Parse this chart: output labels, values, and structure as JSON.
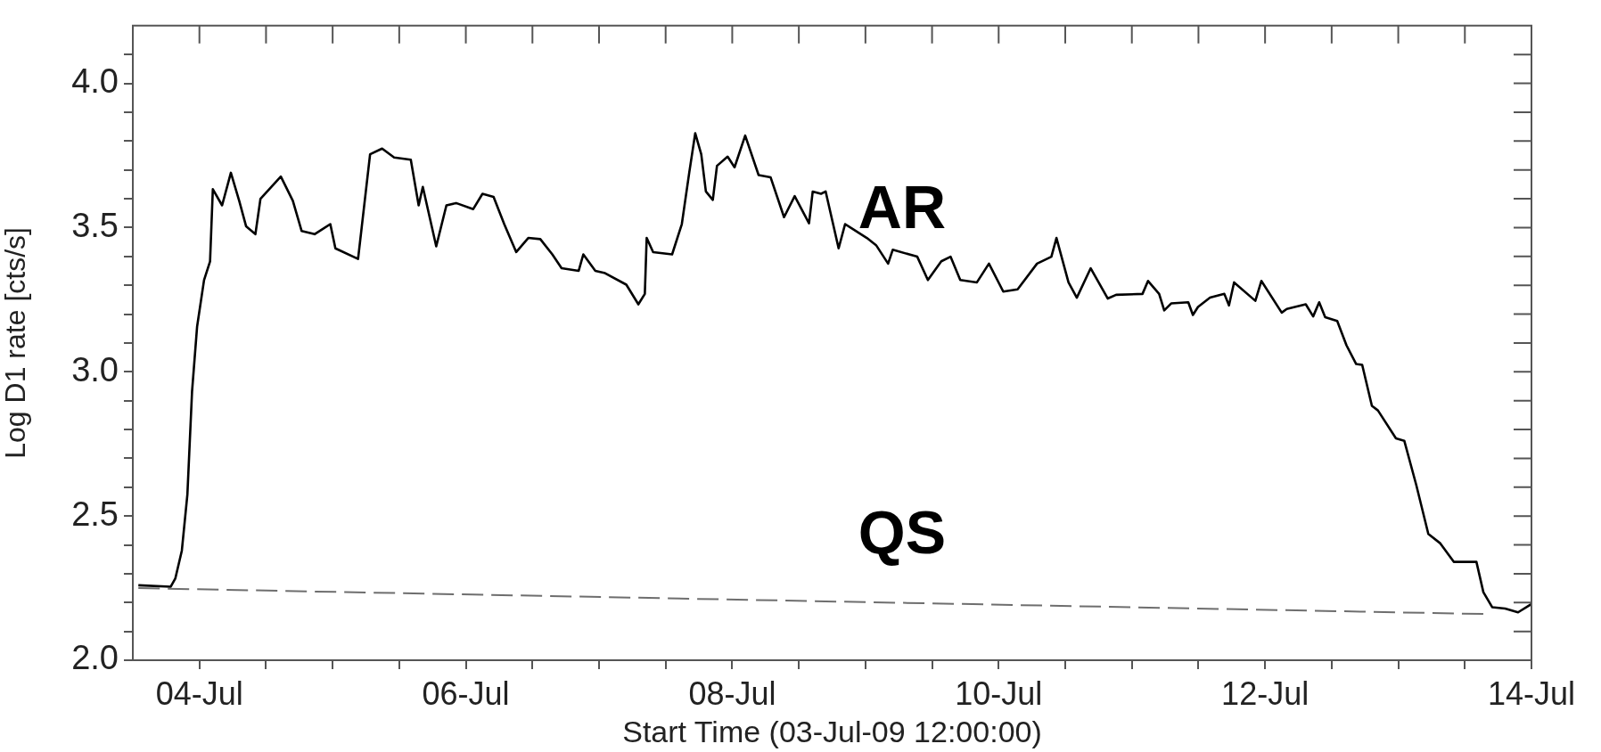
{
  "chart_data": {
    "type": "line",
    "xlabel": "Start Time (03-Jul-09 12:00:00)",
    "ylabel": "Log D1 rate [cts/s]",
    "xlim": [
      "--07-03T12:00",
      "--07-14T00:00"
    ],
    "xticks": [
      {
        "value": "--07-04T00:00",
        "label": "04-Jul"
      },
      {
        "value": "--07-04T12:00",
        "label": null
      },
      {
        "value": "--07-05T00:00",
        "label": null
      },
      {
        "value": "--07-05T12:00",
        "label": null
      },
      {
        "value": "--07-06T00:00",
        "label": "06-Jul"
      },
      {
        "value": "--07-06T12:00",
        "label": null
      },
      {
        "value": "--07-07T00:00",
        "label": null
      },
      {
        "value": "--07-07T12:00",
        "label": null
      },
      {
        "value": "--07-08T00:00",
        "label": "08-Jul"
      },
      {
        "value": "--07-08T12:00",
        "label": null
      },
      {
        "value": "--07-09T00:00",
        "label": null
      },
      {
        "value": "--07-09T12:00",
        "label": null
      },
      {
        "value": "--07-10T00:00",
        "label": "10-Jul"
      },
      {
        "value": "--07-10T12:00",
        "label": null
      },
      {
        "value": "--07-11T00:00",
        "label": null
      },
      {
        "value": "--07-11T12:00",
        "label": null
      },
      {
        "value": "--07-12T00:00",
        "label": "12-Jul"
      },
      {
        "value": "--07-12T12:00",
        "label": null
      },
      {
        "value": "--07-13T00:00",
        "label": null
      },
      {
        "value": "--07-13T12:00",
        "label": null
      },
      {
        "value": "--07-14T00:00",
        "label": "14-Jul"
      }
    ],
    "ylim": [
      2.0,
      4.2
    ],
    "yticks": [
      {
        "value": 2.0,
        "label": "2.0"
      },
      {
        "value": 2.1,
        "label": null
      },
      {
        "value": 2.2,
        "label": null
      },
      {
        "value": 2.3,
        "label": null
      },
      {
        "value": 2.4,
        "label": null
      },
      {
        "value": 2.5,
        "label": "2.5"
      },
      {
        "value": 2.6,
        "label": null
      },
      {
        "value": 2.7,
        "label": null
      },
      {
        "value": 2.8,
        "label": null
      },
      {
        "value": 2.9,
        "label": null
      },
      {
        "value": 3.0,
        "label": "3.0"
      },
      {
        "value": 3.1,
        "label": null
      },
      {
        "value": 3.2,
        "label": null
      },
      {
        "value": 3.3,
        "label": null
      },
      {
        "value": 3.4,
        "label": null
      },
      {
        "value": 3.5,
        "label": "3.5"
      },
      {
        "value": 3.6,
        "label": null
      },
      {
        "value": 3.7,
        "label": null
      },
      {
        "value": 3.8,
        "label": null
      },
      {
        "value": 3.9,
        "label": null
      },
      {
        "value": 4.0,
        "label": "4.0"
      },
      {
        "value": 4.1,
        "label": null
      }
    ],
    "grid": false,
    "legend": false,
    "marker": "none",
    "series": [
      {
        "name": "AR",
        "color": "#000000",
        "line_style": "solid",
        "x": [
          "--07-03T13:00",
          "--07-03T18:50",
          "--07-03T19:40",
          "--07-03T20:50",
          "--07-03T21:50",
          "--07-03T22:40",
          "--07-03T23:35",
          "--07-04T00:50",
          "--07-04T01:55",
          "--07-04T02:25",
          "--07-04T04:05",
          "--07-04T05:40",
          "--07-04T07:10",
          "--07-04T08:25",
          "--07-04T10:05",
          "--07-04T11:00",
          "--07-04T14:40",
          "--07-04T16:50",
          "--07-04T18:25",
          "--07-04T20:45",
          "--07-04T23:35",
          "--07-05T00:30",
          "--07-05T04:35",
          "--07-05T06:45",
          "--07-05T08:55",
          "--07-05T11:05",
          "--07-05T14:05",
          "--07-05T15:30",
          "--07-05T16:15",
          "--07-05T18:40",
          "--07-05T20:30",
          "--07-05T22:15",
          "--07-06T01:20",
          "--07-06T03:00",
          "--07-06T05:00",
          "--07-06T06:55",
          "--07-06T09:05",
          "--07-06T11:15",
          "--07-06T13:25",
          "--07-06T15:35",
          "--07-06T17:15",
          "--07-06T20:20",
          "--07-06T21:10",
          "--07-06T23:20",
          "--07-07T01:05",
          "--07-07T04:55",
          "--07-07T07:05",
          "--07-07T08:15",
          "--07-07T08:35",
          "--07-07T09:45",
          "--07-07T13:10",
          "--07-07T14:55",
          "--07-07T16:15",
          "--07-07T17:20",
          "--07-07T18:25",
          "--07-07T19:15",
          "--07-07T20:30",
          "--07-07T21:15",
          "--07-07T23:10",
          "--07-08T00:25",
          "--07-08T02:20",
          "--07-08T04:45",
          "--07-08T06:55",
          "--07-08T09:20",
          "--07-08T11:15",
          "--07-08T13:50",
          "--07-08T14:30",
          "--07-08T16:00",
          "--07-08T16:50",
          "--07-08T19:10",
          "--07-08T20:20",
          "--07-09T00:15",
          "--07-09T01:55",
          "--07-09T04:05",
          "--07-09T04:55",
          "--07-09T09:20",
          "--07-09T11:15",
          "--07-09T13:40",
          "--07-09T15:20",
          "--07-09T17:05",
          "--07-09T20:05",
          "--07-09T22:15",
          "--07-10T00:50",
          "--07-10T03:25",
          "--07-10T06:55",
          "--07-10T09:30",
          "--07-10T10:25",
          "--07-10T12:35",
          "--07-10T14:05",
          "--07-10T16:35",
          "--07-10T19:40",
          "--07-10T21:10",
          "--07-11T01:55",
          "--07-11T02:55",
          "--07-11T04:55",
          "--07-11T05:50",
          "--07-11T07:05",
          "--07-11T10:10",
          "--07-11T11:00",
          "--07-11T11:55",
          "--07-11T14:05",
          "--07-11T16:40",
          "--07-11T17:30",
          "--07-11T18:25",
          "--07-11T22:15",
          "--07-11T23:20",
          "--07-12T03:00",
          "--07-12T03:55",
          "--07-12T07:20",
          "--07-12T08:40",
          "--07-12T09:45",
          "--07-12T10:50",
          "--07-12T13:00",
          "--07-12T14:40",
          "--07-12T16:25",
          "--07-12T17:30",
          "--07-12T19:15",
          "--07-12T20:20",
          "--07-12T23:35",
          "--07-13T01:05",
          "--07-13T03:15",
          "--07-13T05:25",
          "--07-13T07:35",
          "--07-13T10:00",
          "--07-13T14:05",
          "--07-13T15:20",
          "--07-13T16:55",
          "--07-13T19:15",
          "--07-13T21:35",
          "--07-14T00:00"
        ],
        "values": [
          2.26,
          2.255,
          2.284,
          2.38,
          2.575,
          2.93,
          3.157,
          3.318,
          3.383,
          3.633,
          3.577,
          3.69,
          3.593,
          3.504,
          3.477,
          3.6,
          3.677,
          3.593,
          3.488,
          3.477,
          3.512,
          3.428,
          3.391,
          3.754,
          3.774,
          3.743,
          3.735,
          3.577,
          3.641,
          3.435,
          3.577,
          3.585,
          3.564,
          3.617,
          3.606,
          3.512,
          3.415,
          3.464,
          3.46,
          3.407,
          3.359,
          3.35,
          3.407,
          3.35,
          3.342,
          3.302,
          3.234,
          3.27,
          3.464,
          3.415,
          3.407,
          3.512,
          3.69,
          3.827,
          3.754,
          3.625,
          3.596,
          3.714,
          3.746,
          3.709,
          3.819,
          3.682,
          3.674,
          3.536,
          3.609,
          3.515,
          3.625,
          3.617,
          3.625,
          3.428,
          3.512,
          3.464,
          3.439,
          3.375,
          3.423,
          3.399,
          3.318,
          3.383,
          3.399,
          3.318,
          3.31,
          3.375,
          3.278,
          3.286,
          3.375,
          3.399,
          3.464,
          3.31,
          3.257,
          3.359,
          3.254,
          3.267,
          3.27,
          3.315,
          3.27,
          3.213,
          3.237,
          3.241,
          3.197,
          3.225,
          3.257,
          3.27,
          3.23,
          3.31,
          3.246,
          3.315,
          3.205,
          3.218,
          3.234,
          3.192,
          3.241,
          3.189,
          3.176,
          3.092,
          3.027,
          3.024,
          2.882,
          2.866,
          2.769,
          2.761,
          2.607,
          2.438,
          2.405,
          2.341,
          2.341,
          2.236,
          2.184,
          2.179,
          2.166,
          2.195
        ]
      },
      {
        "name": "QS",
        "color": "#6e6e6e",
        "line_style": "dashed",
        "x": [
          "--07-03T13:00",
          "--07-13T16:00"
        ],
        "values": [
          2.25,
          2.16
        ]
      }
    ]
  }
}
